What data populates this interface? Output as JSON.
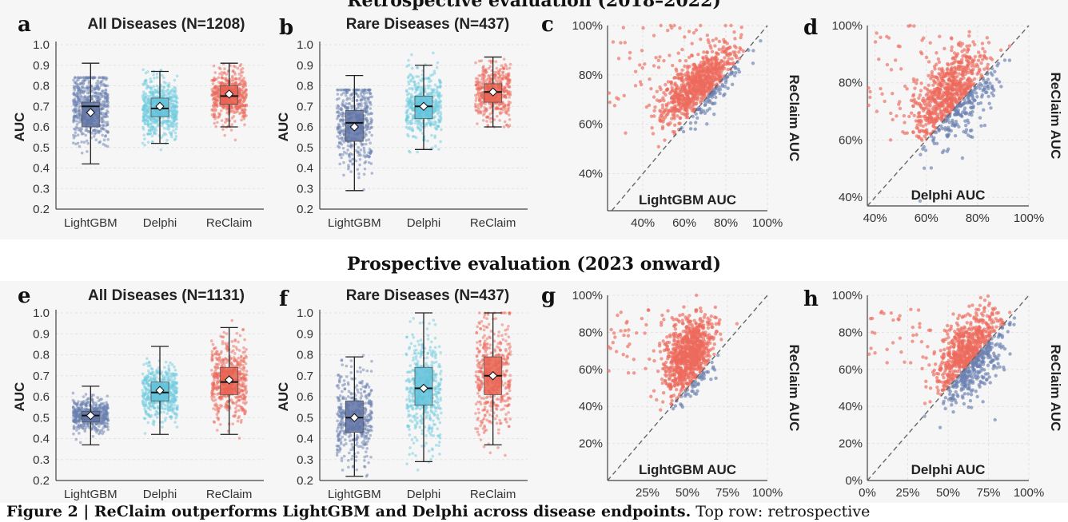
{
  "top_header": "Retrospective evaluation (2018–2022)",
  "bottom_header": "Prospective evaluation (2023 onward)",
  "caption": {
    "bold": "Figure 2 | ReClaim outperforms LightGBM and Delphi across disease endpoints.",
    "rest": " Top row: retrospective"
  },
  "colors": {
    "lightgbm": "#6a7fb0",
    "delphi": "#6fcbe0",
    "reclaim": "#ec6a5c",
    "reclaim_box": "#e8604f",
    "lgbm_box": "#5f73a6",
    "delphi_box": "#5fc2da"
  },
  "panels": {
    "a": {
      "letter": "a",
      "title": "All Diseases (N=1208)"
    },
    "b": {
      "letter": "b",
      "title": "Rare Diseases (N=437)"
    },
    "c": {
      "letter": "c"
    },
    "d": {
      "letter": "d"
    },
    "e": {
      "letter": "e",
      "title": "All Diseases (N=1131)"
    },
    "f": {
      "letter": "f",
      "title": "Rare Diseases (N=437)"
    },
    "g": {
      "letter": "g"
    },
    "h": {
      "letter": "h"
    }
  },
  "chart_data": [
    {
      "id": "a",
      "type": "box",
      "title": "All Diseases (N=1208)",
      "ylabel": "AUC",
      "ylim": [
        0.2,
        1.0
      ],
      "yticks": [
        0.2,
        0.3,
        0.4,
        0.5,
        0.6,
        0.7,
        0.8,
        0.9,
        1.0
      ],
      "categories": [
        "LightGBM",
        "Delphi",
        "ReClaim"
      ],
      "boxes": [
        {
          "name": "LightGBM",
          "min": 0.42,
          "q1": 0.6,
          "median": 0.7,
          "q3": 0.72,
          "max": 0.91,
          "mean": 0.67,
          "pmin": 0.25,
          "pmax": 0.84,
          "n": 1208
        },
        {
          "name": "Delphi",
          "min": 0.52,
          "q1": 0.65,
          "median": 0.69,
          "q3": 0.74,
          "max": 0.87,
          "mean": 0.7,
          "pmin": 0.38,
          "pmax": 0.99,
          "n": 1208
        },
        {
          "name": "ReClaim",
          "min": 0.6,
          "q1": 0.71,
          "median": 0.75,
          "q3": 0.8,
          "max": 0.91,
          "mean": 0.76,
          "pmin": 0.39,
          "pmax": 0.95,
          "n": 1208
        }
      ]
    },
    {
      "id": "b",
      "type": "box",
      "title": "Rare Diseases (N=437)",
      "ylabel": "AUC",
      "ylim": [
        0.2,
        1.0
      ],
      "yticks": [
        0.2,
        0.3,
        0.4,
        0.5,
        0.6,
        0.7,
        0.8,
        0.9,
        1.0
      ],
      "categories": [
        "LightGBM",
        "Delphi",
        "ReClaim"
      ],
      "boxes": [
        {
          "name": "LightGBM",
          "min": 0.29,
          "q1": 0.53,
          "median": 0.62,
          "q3": 0.68,
          "max": 0.85,
          "mean": 0.6,
          "pmin": 0.25,
          "pmax": 0.78,
          "n": 437
        },
        {
          "name": "Delphi",
          "min": 0.49,
          "q1": 0.64,
          "median": 0.7,
          "q3": 0.75,
          "max": 0.9,
          "mean": 0.7,
          "pmin": 0.42,
          "pmax": 0.96,
          "n": 437
        },
        {
          "name": "ReClaim",
          "min": 0.6,
          "q1": 0.72,
          "median": 0.77,
          "q3": 0.81,
          "max": 0.94,
          "mean": 0.77,
          "pmin": 0.6,
          "pmax": 0.96,
          "n": 437
        }
      ]
    },
    {
      "id": "c",
      "type": "scatter",
      "xlabel": "LightGBM AUC",
      "ylabel": "ReClaim AUC",
      "xlim": [
        0.23,
        1.0
      ],
      "ylim": [
        0.25,
        1.0
      ],
      "xticks": [
        0.4,
        0.6,
        0.8,
        1.0
      ],
      "yticks": [
        0.4,
        0.6,
        0.8,
        1.0
      ],
      "cluster": {
        "xmean": 0.67,
        "xsd": 0.09,
        "ymean": 0.76,
        "ysd": 0.06,
        "n": 1208
      },
      "diagonal": true,
      "tick_format": "pct0"
    },
    {
      "id": "d",
      "type": "scatter",
      "xlabel": "Delphi AUC",
      "ylabel": "ReClaim AUC",
      "xlim": [
        0.37,
        1.0
      ],
      "ylim": [
        0.37,
        1.0
      ],
      "xticks": [
        0.4,
        0.6,
        0.8,
        1.0
      ],
      "yticks": [
        0.4,
        0.6,
        0.8,
        1.0
      ],
      "cluster": {
        "xmean": 0.7,
        "xsd": 0.08,
        "ymean": 0.76,
        "ysd": 0.07,
        "n": 1208
      },
      "diagonal": true,
      "tick_format": "pct0"
    },
    {
      "id": "e",
      "type": "box",
      "title": "All Diseases (N=1131)",
      "ylabel": "AUC",
      "ylim": [
        0.2,
        1.0
      ],
      "yticks": [
        0.2,
        0.3,
        0.4,
        0.5,
        0.6,
        0.7,
        0.8,
        0.9,
        1.0
      ],
      "categories": [
        "LightGBM",
        "Delphi",
        "ReClaim"
      ],
      "boxes": [
        {
          "name": "LightGBM",
          "min": 0.37,
          "q1": 0.48,
          "median": 0.51,
          "q3": 0.53,
          "max": 0.65,
          "mean": 0.51,
          "pmin": 0.22,
          "pmax": 0.9,
          "n": 1131
        },
        {
          "name": "Delphi",
          "min": 0.42,
          "q1": 0.58,
          "median": 0.62,
          "q3": 0.67,
          "max": 0.84,
          "mean": 0.63,
          "pmin": 0.38,
          "pmax": 1.0,
          "n": 1131
        },
        {
          "name": "ReClaim",
          "min": 0.42,
          "q1": 0.61,
          "median": 0.67,
          "q3": 0.74,
          "max": 0.93,
          "mean": 0.68,
          "pmin": 0.24,
          "pmax": 1.0,
          "n": 1131
        }
      ]
    },
    {
      "id": "f",
      "type": "box",
      "title": "Rare Diseases (N=437)",
      "ylabel": "AUC",
      "ylim": [
        0.2,
        1.0
      ],
      "yticks": [
        0.2,
        0.3,
        0.4,
        0.5,
        0.6,
        0.7,
        0.8,
        0.9,
        1.0
      ],
      "categories": [
        "LightGBM",
        "Delphi",
        "ReClaim"
      ],
      "boxes": [
        {
          "name": "LightGBM",
          "min": 0.22,
          "q1": 0.43,
          "median": 0.5,
          "q3": 0.58,
          "max": 0.79,
          "mean": 0.5,
          "pmin": 0.22,
          "pmax": 0.9,
          "n": 437
        },
        {
          "name": "Delphi",
          "min": 0.29,
          "q1": 0.56,
          "median": 0.64,
          "q3": 0.74,
          "max": 1.0,
          "mean": 0.64,
          "pmin": 0.25,
          "pmax": 1.0,
          "n": 437
        },
        {
          "name": "ReClaim",
          "min": 0.37,
          "q1": 0.61,
          "median": 0.7,
          "q3": 0.79,
          "max": 1.0,
          "mean": 0.7,
          "pmin": 0.23,
          "pmax": 1.0,
          "n": 437
        }
      ]
    },
    {
      "id": "g",
      "type": "scatter",
      "xlabel": "LightGBM AUC",
      "ylabel": "ReClaim AUC",
      "xlim": [
        0.0,
        1.0
      ],
      "ylim": [
        0.0,
        1.0
      ],
      "xticks": [
        0.25,
        0.5,
        0.75,
        1.0
      ],
      "yticks": [
        0.2,
        0.4,
        0.6,
        0.8,
        1.0
      ],
      "cluster": {
        "xmean": 0.51,
        "xsd": 0.08,
        "ymean": 0.68,
        "ysd": 0.1,
        "n": 1131
      },
      "diagonal": true,
      "tick_format": "pct0"
    },
    {
      "id": "h",
      "type": "scatter",
      "xlabel": "Delphi AUC",
      "ylabel": "ReClaim AUC",
      "xlim": [
        0.0,
        1.0
      ],
      "ylim": [
        0.0,
        1.0
      ],
      "xticks": [
        0.0,
        0.25,
        0.5,
        0.75,
        1.0
      ],
      "yticks": [
        0.0,
        0.2,
        0.4,
        0.6,
        0.8,
        1.0
      ],
      "cluster": {
        "xmean": 0.63,
        "xsd": 0.1,
        "ymean": 0.68,
        "ysd": 0.11,
        "n": 1131
      },
      "diagonal": true,
      "tick_format": "pct0"
    }
  ]
}
